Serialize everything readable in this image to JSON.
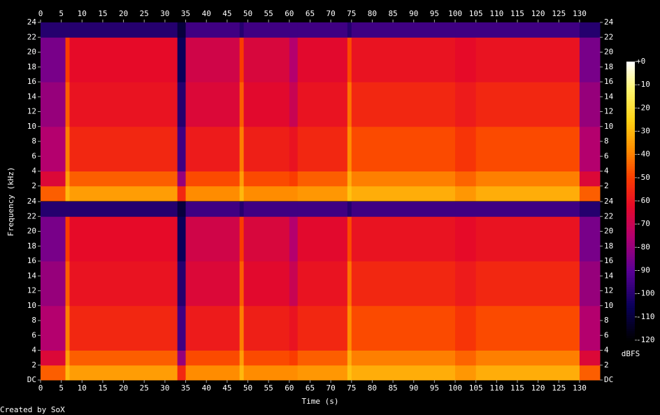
{
  "chart_data": {
    "type": "spectrogram",
    "xlabel": "Time (s)",
    "ylabel": "Frequency (kHz)",
    "zlabel": "dBFS",
    "footer": "Created by SoX",
    "xlim": [
      0,
      134.9
    ],
    "ylim": [
      0,
      24
    ],
    "zlim": [
      -120,
      0
    ],
    "xticks": [
      0,
      5,
      10,
      15,
      20,
      25,
      30,
      35,
      40,
      45,
      50,
      55,
      60,
      65,
      70,
      75,
      80,
      85,
      90,
      95,
      100,
      105,
      110,
      115,
      120,
      125,
      130
    ],
    "channels": [
      {
        "yticks": [
          2,
          4,
          6,
          8,
          10,
          12,
          14,
          16,
          18,
          20,
          22,
          24
        ]
      },
      {
        "yticks": [
          {
            "value": 0,
            "label": "DC"
          },
          2,
          4,
          6,
          8,
          10,
          12,
          14,
          16,
          18,
          20,
          22,
          24
        ]
      }
    ],
    "zticks": [
      -120,
      -110,
      -100,
      -90,
      -80,
      -70,
      -60,
      -50,
      -40,
      -30,
      -20,
      -10,
      {
        "value": 0,
        "label": "+0"
      }
    ],
    "x_edges": [
      0,
      6,
      7,
      33,
      35,
      48,
      49,
      60,
      62,
      74,
      75,
      100,
      105,
      130,
      134.9
    ],
    "y_edges": [
      0,
      2,
      4,
      10,
      16,
      22,
      24
    ],
    "values": [
      [
        -45,
        -65,
        -75,
        -80,
        -85,
        -100
      ],
      [
        -30,
        -35,
        -40,
        -45,
        -50,
        -100
      ],
      [
        -35,
        -45,
        -55,
        -60,
        -62,
        -100
      ],
      [
        -55,
        -80,
        -95,
        -100,
        -105,
        -110
      ],
      [
        -38,
        -48,
        -58,
        -65,
        -68,
        -95
      ],
      [
        -30,
        -35,
        -40,
        -45,
        -50,
        -100
      ],
      [
        -38,
        -48,
        -57,
        -63,
        -66,
        -95
      ],
      [
        -38,
        -50,
        -60,
        -70,
        -75,
        -95
      ],
      [
        -36,
        -45,
        -55,
        -60,
        -63,
        -95
      ],
      [
        -28,
        -32,
        -38,
        -42,
        -48,
        -100
      ],
      [
        -32,
        -40,
        -48,
        -55,
        -60,
        -95
      ],
      [
        -36,
        -44,
        -52,
        -58,
        -62,
        -95
      ],
      [
        -32,
        -40,
        -48,
        -55,
        -60,
        -95
      ],
      [
        -45,
        -65,
        -75,
        -80,
        -85,
        -100
      ]
    ]
  }
}
